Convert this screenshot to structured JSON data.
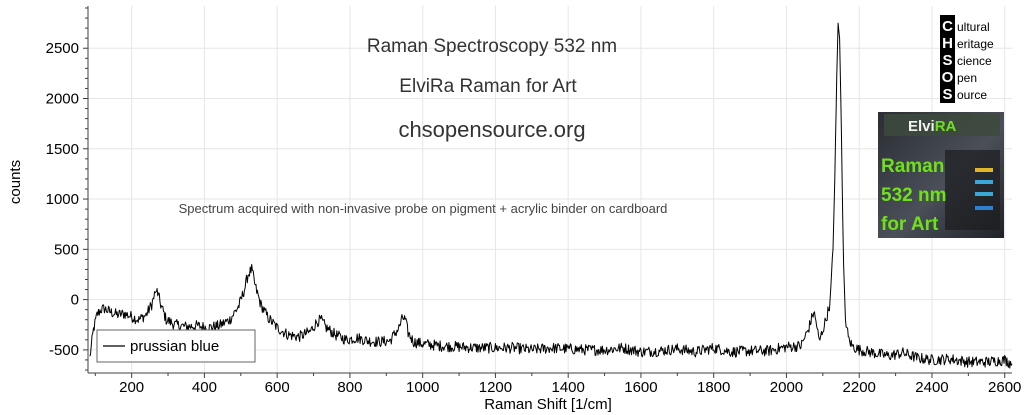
{
  "chart_data": {
    "type": "line",
    "title": "Raman Spectroscopy 532 nm",
    "subtitle_lines": [
      "ElviRa Raman for Art",
      "chsopensource.org"
    ],
    "annotation": "Spectrum acquired with non-invasive probe on pigment + acrylic binder on cardboard",
    "xlabel": "Raman Shift [1/cm]",
    "ylabel": "counts",
    "xlim": [
      80,
      2620
    ],
    "ylim": [
      -730,
      2920
    ],
    "x_ticks": [
      200,
      400,
      600,
      800,
      1000,
      1200,
      1400,
      1600,
      1800,
      2000,
      2200,
      2400,
      2600
    ],
    "y_ticks": [
      -500,
      0,
      500,
      1000,
      1500,
      2000,
      2500
    ],
    "grid": true,
    "legend_position": "bottom-left",
    "line_color": "#000000",
    "series": [
      {
        "name": "prussian blue",
        "x": [
          85,
          95,
          105,
          115,
          125,
          140,
          160,
          180,
          200,
          220,
          240,
          255,
          265,
          270,
          280,
          295,
          320,
          350,
          380,
          410,
          440,
          470,
          495,
          510,
          520,
          530,
          540,
          555,
          575,
          600,
          630,
          660,
          690,
          710,
          720,
          735,
          760,
          790,
          820,
          850,
          880,
          910,
          935,
          945,
          952,
          960,
          975,
          1000,
          1050,
          1100,
          1150,
          1200,
          1250,
          1300,
          1350,
          1400,
          1450,
          1500,
          1550,
          1600,
          1650,
          1700,
          1750,
          1800,
          1850,
          1900,
          1950,
          2000,
          2040,
          2060,
          2075,
          2083,
          2090,
          2100,
          2110,
          2120,
          2128,
          2133,
          2138,
          2142,
          2146,
          2150,
          2153,
          2157,
          2162,
          2170,
          2180,
          2200,
          2240,
          2280,
          2320,
          2360,
          2400,
          2450,
          2500,
          2550,
          2600,
          2620
        ],
        "y": [
          -580,
          -300,
          -150,
          -100,
          -90,
          -120,
          -150,
          -140,
          -170,
          -200,
          -150,
          -50,
          70,
          90,
          -50,
          -200,
          -250,
          -270,
          -260,
          -280,
          -260,
          -200,
          -60,
          100,
          250,
          300,
          130,
          -50,
          -180,
          -280,
          -350,
          -370,
          -320,
          -220,
          -200,
          -280,
          -350,
          -400,
          -380,
          -410,
          -420,
          -410,
          -280,
          -180,
          -200,
          -330,
          -420,
          -440,
          -460,
          -470,
          -480,
          -480,
          -480,
          -500,
          -480,
          -490,
          -500,
          -500,
          -480,
          -520,
          -510,
          -490,
          -520,
          -480,
          -520,
          -510,
          -510,
          -470,
          -460,
          -300,
          -120,
          -250,
          -420,
          -300,
          -180,
          -30,
          500,
          1200,
          2200,
          2750,
          2600,
          1900,
          1200,
          350,
          -180,
          -380,
          -460,
          -500,
          -530,
          -560,
          -530,
          -580,
          -600,
          -590,
          -620,
          -620,
          -600,
          -640
        ]
      }
    ]
  },
  "logo": {
    "letters": [
      "C",
      "H",
      "S",
      "O",
      "S"
    ],
    "words": [
      "ultural",
      "eritage",
      "cience",
      "pen",
      "ource"
    ]
  },
  "badge": {
    "brand_prefix": "Elvi",
    "brand_suffix": "RA",
    "lines": [
      "Raman",
      "532 nm",
      "for Art"
    ]
  },
  "colors": {
    "background": "#ffffff",
    "grid": "#e6e6e6",
    "axis": "#404040",
    "badge_green": "#6fe11a",
    "badge_bg": "#3a3d42",
    "logo_black": "#000000"
  }
}
